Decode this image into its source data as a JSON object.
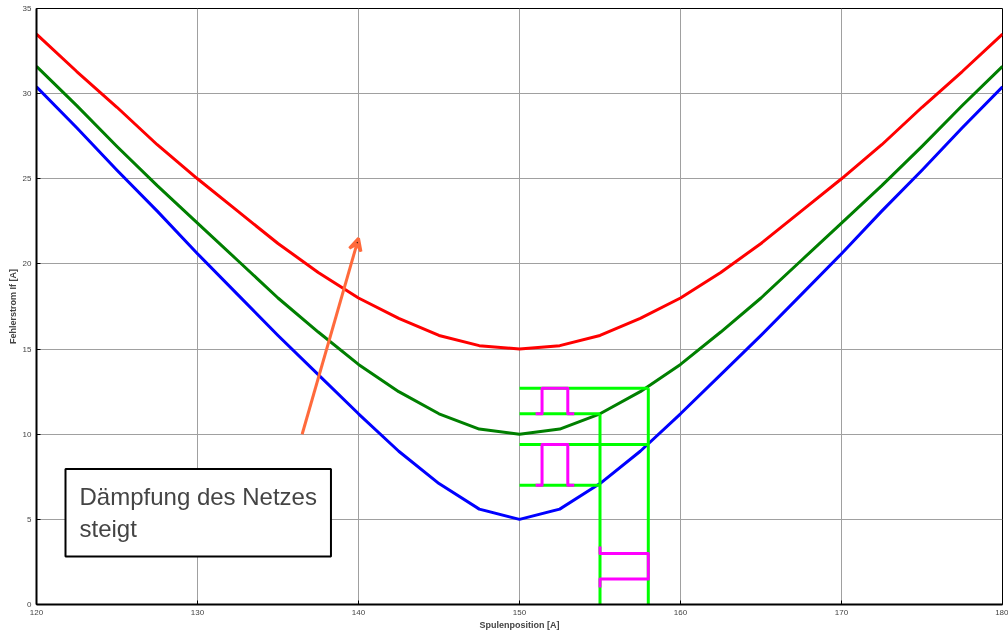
{
  "chart_data": {
    "type": "line",
    "xlabel": "Spulenposition [A]",
    "ylabel": "Fehlerstrom If [A]",
    "x": [
      120,
      122.5,
      125,
      127.5,
      130,
      132.5,
      135,
      137.5,
      140,
      142.5,
      145,
      147.5,
      150,
      152.5,
      155,
      157.5,
      160,
      162.5,
      165,
      167.5,
      170,
      172.5,
      175,
      177.5,
      180
    ],
    "series": [
      {
        "color": "#ff0000",
        "values": [
          33.5,
          31.3,
          29.2,
          27.0,
          25.0,
          23.1,
          21.2,
          19.5,
          18.0,
          16.8,
          15.8,
          15.2,
          15.0,
          15.2,
          15.8,
          16.8,
          18.0,
          19.5,
          21.2,
          23.1,
          25.0,
          27.0,
          29.2,
          31.3,
          33.5
        ]
      },
      {
        "color": "#007f00",
        "values": [
          31.6,
          29.3,
          26.9,
          24.6,
          22.4,
          20.2,
          18.0,
          16.0,
          14.1,
          12.5,
          11.2,
          10.3,
          10.0,
          10.3,
          11.2,
          12.5,
          14.1,
          16.0,
          18.0,
          20.2,
          22.4,
          24.6,
          26.9,
          29.3,
          31.6
        ]
      },
      {
        "color": "#0000ff",
        "values": [
          30.4,
          28.0,
          25.5,
          23.1,
          20.6,
          18.2,
          15.8,
          13.5,
          11.2,
          9.0,
          7.1,
          5.6,
          5.0,
          5.6,
          7.1,
          9.0,
          11.2,
          13.5,
          15.8,
          18.2,
          20.6,
          23.1,
          25.5,
          28.0,
          30.4
        ]
      },
      {
        "color": "#00ff00",
        "x": [
          150,
          158
        ],
        "values": [
          12.7,
          12.7
        ]
      },
      {
        "color": "#00ff00",
        "x": [
          150,
          155
        ],
        "values": [
          11.2,
          11.2
        ]
      },
      {
        "color": "#00ff00",
        "x": [
          150,
          158
        ],
        "values": [
          9.4,
          9.4
        ]
      },
      {
        "color": "#00ff00",
        "x": [
          150,
          155
        ],
        "values": [
          7.0,
          7.0
        ]
      },
      {
        "color": "#00ff00",
        "x": [
          155,
          155
        ],
        "values": [
          0,
          11.2
        ]
      },
      {
        "color": "#00ff00",
        "x": [
          158,
          158
        ],
        "values": [
          0,
          12.7
        ]
      },
      {
        "color": "#ff00ff",
        "x": [
          151.0,
          151.4,
          151.4,
          153.0,
          153.0,
          153.4
        ],
        "values": [
          11.2,
          11.2,
          12.7,
          12.7,
          11.2,
          11.2
        ]
      },
      {
        "color": "#ff00ff",
        "x": [
          151.0,
          151.4,
          151.4,
          153.0,
          153.0,
          153.4
        ],
        "values": [
          7.0,
          7.0,
          9.4,
          9.4,
          7.0,
          7.0
        ]
      },
      {
        "color": "#ff00ff",
        "x": [
          155,
          155,
          158,
          158,
          155,
          155
        ],
        "values": [
          3.4,
          3.0,
          3.0,
          1.5,
          1.5,
          1.0
        ]
      }
    ],
    "xlim": [
      120,
      180
    ],
    "ylim": [
      0,
      35
    ],
    "xticks": [
      120,
      130,
      140,
      150,
      160,
      170,
      180
    ],
    "yticks": [
      0,
      5,
      10,
      15,
      20,
      25,
      30,
      35
    ],
    "grid": true,
    "marker": "none",
    "line_style": "solid",
    "annotations": [
      "Dämpfung des Netzes steigt"
    ]
  }
}
